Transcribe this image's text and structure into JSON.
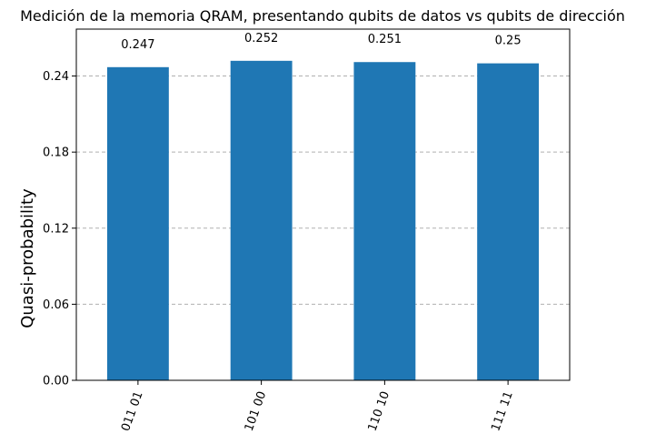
{
  "chart_data": {
    "type": "bar",
    "title": "Medición de la memoria QRAM, presentando qubits de datos vs qubits de dirección",
    "xlabel": "",
    "ylabel": "Quasi-probability",
    "categories": [
      "011 01",
      "101 00",
      "110 10",
      "111 11"
    ],
    "values": [
      0.247,
      0.252,
      0.251,
      0.25
    ],
    "data_labels": [
      "0.247",
      "0.252",
      "0.251",
      "0.25"
    ],
    "yticks": [
      0.0,
      0.06,
      0.12,
      0.18,
      0.24
    ],
    "ytick_labels": [
      "0.00",
      "0.06",
      "0.12",
      "0.18",
      "0.24"
    ],
    "ylim": [
      0,
      0.277
    ],
    "grid": true,
    "bar_color": "#1f77b4"
  }
}
